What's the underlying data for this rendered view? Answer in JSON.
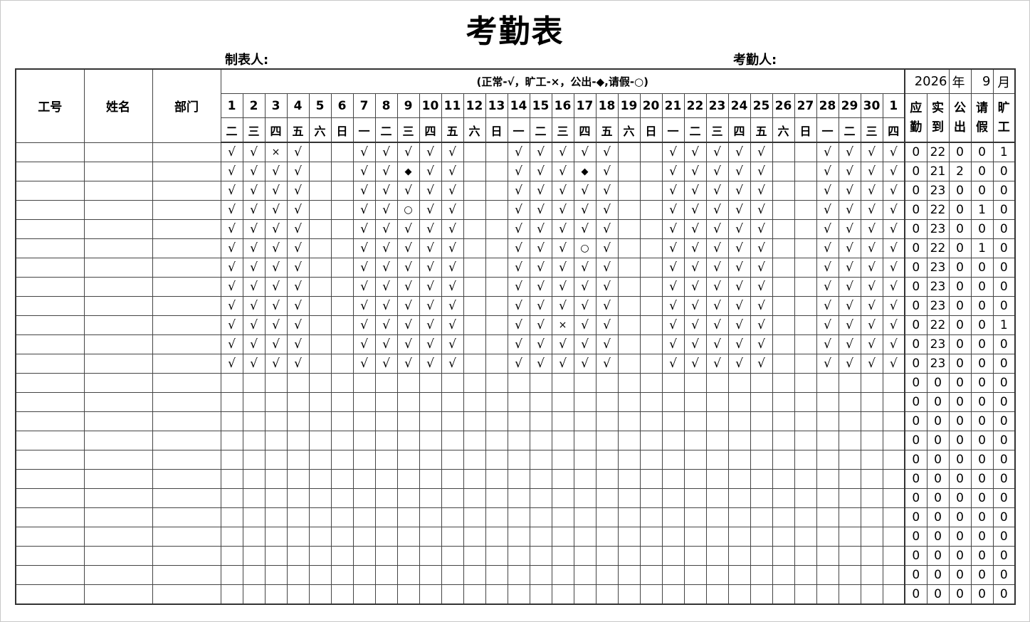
{
  "title": "考勤表",
  "maker_label": "制表人:",
  "checker_label": "考勤人:",
  "headers": {
    "id": "工号",
    "name": "姓名",
    "dept": "部门"
  },
  "legend": "(正常-√，旷工-×，公出-◆,请假-○)",
  "year": "2026",
  "year_label": "年",
  "month": "9",
  "month_label": "月",
  "days": [
    "1",
    "2",
    "3",
    "4",
    "5",
    "6",
    "7",
    "8",
    "9",
    "10",
    "11",
    "12",
    "13",
    "14",
    "15",
    "16",
    "17",
    "18",
    "19",
    "20",
    "21",
    "22",
    "23",
    "24",
    "25",
    "26",
    "27",
    "28",
    "29",
    "30",
    "1"
  ],
  "weekdays": [
    "二",
    "三",
    "四",
    "五",
    "六",
    "日",
    "一",
    "二",
    "三",
    "四",
    "五",
    "六",
    "日",
    "一",
    "二",
    "三",
    "四",
    "五",
    "六",
    "日",
    "一",
    "二",
    "三",
    "四",
    "五",
    "六",
    "日",
    "一",
    "二",
    "三",
    "四"
  ],
  "summary_headers": [
    "应勤",
    "实到",
    "公出",
    "请假",
    "旷工"
  ],
  "rows": [
    {
      "marks": "√√×√  √√√√√  √√√√√  √√√√√  √√√√",
      "summary": [
        "0",
        "22",
        "0",
        "0",
        "1"
      ]
    },
    {
      "marks": "√√√√  √√◆√√  √√√◆√  √√√√√  √√√√",
      "summary": [
        "0",
        "21",
        "2",
        "0",
        "0"
      ]
    },
    {
      "marks": "√√√√  √√√√√  √√√√√  √√√√√  √√√√",
      "summary": [
        "0",
        "23",
        "0",
        "0",
        "0"
      ]
    },
    {
      "marks": "√√√√  √√○√√  √√√√√  √√√√√  √√√√",
      "summary": [
        "0",
        "22",
        "0",
        "1",
        "0"
      ]
    },
    {
      "marks": "√√√√  √√√√√  √√√√√  √√√√√  √√√√",
      "summary": [
        "0",
        "23",
        "0",
        "0",
        "0"
      ]
    },
    {
      "marks": "√√√√  √√√√√  √√√○√  √√√√√  √√√√",
      "summary": [
        "0",
        "22",
        "0",
        "1",
        "0"
      ]
    },
    {
      "marks": "√√√√  √√√√√  √√√√√  √√√√√  √√√√",
      "summary": [
        "0",
        "23",
        "0",
        "0",
        "0"
      ]
    },
    {
      "marks": "√√√√  √√√√√  √√√√√  √√√√√  √√√√",
      "summary": [
        "0",
        "23",
        "0",
        "0",
        "0"
      ]
    },
    {
      "marks": "√√√√  √√√√√  √√√√√  √√√√√  √√√√",
      "summary": [
        "0",
        "23",
        "0",
        "0",
        "0"
      ]
    },
    {
      "marks": "√√√√  √√√√√  √√×√√  √√√√√  √√√√",
      "summary": [
        "0",
        "22",
        "0",
        "0",
        "1"
      ]
    },
    {
      "marks": "√√√√  √√√√√  √√√√√  √√√√√  √√√√",
      "summary": [
        "0",
        "23",
        "0",
        "0",
        "0"
      ]
    },
    {
      "marks": "√√√√  √√√√√  √√√√√  √√√√√  √√√√",
      "summary": [
        "0",
        "23",
        "0",
        "0",
        "0"
      ]
    },
    {
      "marks": "",
      "summary": [
        "0",
        "0",
        "0",
        "0",
        "0"
      ]
    },
    {
      "marks": "",
      "summary": [
        "0",
        "0",
        "0",
        "0",
        "0"
      ]
    },
    {
      "marks": "",
      "summary": [
        "0",
        "0",
        "0",
        "0",
        "0"
      ]
    },
    {
      "marks": "",
      "summary": [
        "0",
        "0",
        "0",
        "0",
        "0"
      ]
    },
    {
      "marks": "",
      "summary": [
        "0",
        "0",
        "0",
        "0",
        "0"
      ]
    },
    {
      "marks": "",
      "summary": [
        "0",
        "0",
        "0",
        "0",
        "0"
      ]
    },
    {
      "marks": "",
      "summary": [
        "0",
        "0",
        "0",
        "0",
        "0"
      ]
    },
    {
      "marks": "",
      "summary": [
        "0",
        "0",
        "0",
        "0",
        "0"
      ]
    },
    {
      "marks": "",
      "summary": [
        "0",
        "0",
        "0",
        "0",
        "0"
      ]
    },
    {
      "marks": "",
      "summary": [
        "0",
        "0",
        "0",
        "0",
        "0"
      ]
    },
    {
      "marks": "",
      "summary": [
        "0",
        "0",
        "0",
        "0",
        "0"
      ]
    },
    {
      "marks": "",
      "summary": [
        "0",
        "0",
        "0",
        "0",
        "0"
      ]
    }
  ]
}
